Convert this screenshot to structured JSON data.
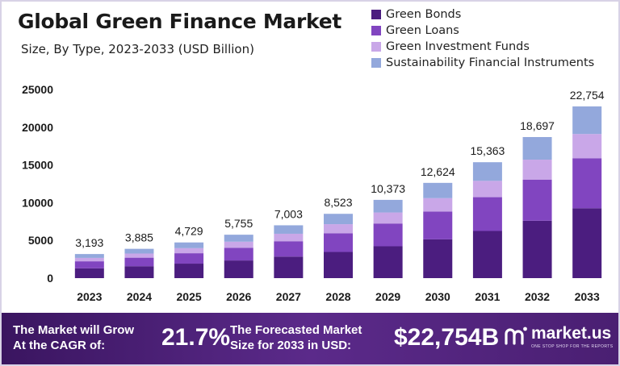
{
  "header": {
    "title": "Global Green Finance Market",
    "subtitle": "Size, By Type, 2023-2033 (USD Billion)"
  },
  "chart_data": {
    "type": "bar",
    "stacked": true,
    "categories": [
      "2023",
      "2024",
      "2025",
      "2026",
      "2027",
      "2028",
      "2029",
      "2030",
      "2031",
      "2032",
      "2033"
    ],
    "totals": [
      3193,
      3885,
      4729,
      5755,
      7003,
      8523,
      10373,
      12624,
      15363,
      18697,
      22754
    ],
    "total_labels": [
      "3,193",
      "3,885",
      "4,729",
      "5,755",
      "7,003",
      "8,523",
      "10,373",
      "12,624",
      "15,363",
      "18,697",
      "22,754"
    ],
    "series": [
      {
        "name": "Green Bonds",
        "color": "#4b1d7f",
        "values": [
          1300,
          1580,
          1920,
          2340,
          2850,
          3470,
          4220,
          5140,
          6250,
          7610,
          9260
        ]
      },
      {
        "name": "Green Loans",
        "color": "#8145c0",
        "values": [
          930,
          1130,
          1380,
          1680,
          2040,
          2480,
          3020,
          3680,
          4480,
          5450,
          6630
        ]
      },
      {
        "name": "Green Investment Funds",
        "color": "#c9a7e8",
        "values": [
          450,
          550,
          670,
          810,
          990,
          1200,
          1460,
          1780,
          2160,
          2640,
          3210
        ]
      },
      {
        "name": "Sustainability Financial Instruments",
        "color": "#93a8dc",
        "values": [
          513,
          625,
          759,
          925,
          1123,
          1373,
          1673,
          2024,
          2473,
          2997,
          3654
        ]
      }
    ],
    "yticks": [
      0,
      5000,
      10000,
      15000,
      20000,
      25000
    ],
    "ylim": [
      0,
      25000
    ],
    "xlabel": "",
    "ylabel": "",
    "grid": false,
    "legend": "top-right"
  },
  "banner": {
    "cagr_label_line1": "The Market will Grow",
    "cagr_label_line2": "At the CAGR of:",
    "cagr_value": "21.7%",
    "forecast_label_line1": "The Forecasted Market",
    "forecast_label_line2": "Size for 2033 in USD:",
    "forecast_value": "$22,754B",
    "brand_name": "market.us",
    "brand_tagline": "ONE STOP SHOP FOR THE REPORTS",
    "brand_icon": "market-us-logo-icon"
  }
}
